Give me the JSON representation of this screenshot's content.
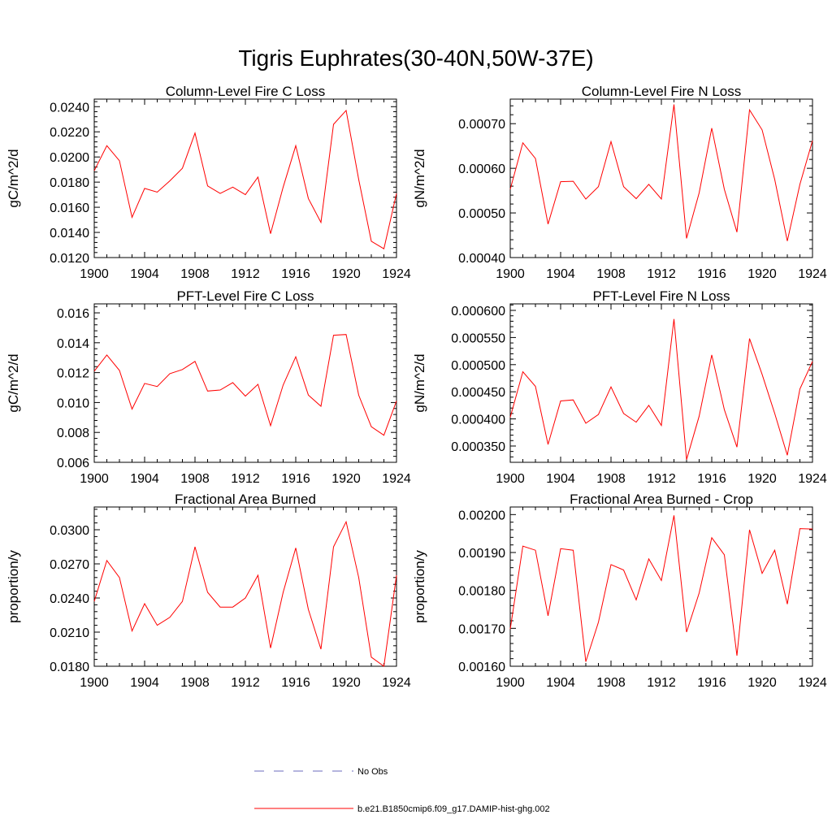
{
  "title": "Tigris Euphrates(30-40N,50W-37E)",
  "legend": {
    "entries": [
      {
        "label": "No Obs",
        "color": "#6b6bbd",
        "style": "dashed"
      },
      {
        "label": "b.e21.B1850cmip6.f09_g17.DAMIP-hist-ghg.002",
        "color": "#ff0000",
        "style": "solid"
      }
    ]
  },
  "chart_data": [
    {
      "type": "line",
      "title": "Column-Level Fire C Loss",
      "ylabel": "gC/m^2/d",
      "xlim": [
        1900,
        1924
      ],
      "ylim": [
        0.012,
        0.0246
      ],
      "x_ticks": [
        1900,
        1904,
        1908,
        1912,
        1916,
        1920,
        1924
      ],
      "x_tick_labels": [
        "1900",
        "1904",
        "1908",
        "1912",
        "1916",
        "1920",
        "1924"
      ],
      "y_ticks": [
        0.012,
        0.014,
        0.016,
        0.018,
        0.02,
        0.022,
        0.024
      ],
      "y_tick_labels": [
        "0.0120",
        "0.0140",
        "0.0160",
        "0.0180",
        "0.0200",
        "0.0220",
        "0.0240"
      ],
      "color": "#ff0000",
      "x": [
        1900,
        1901,
        1902,
        1903,
        1904,
        1905,
        1906,
        1907,
        1908,
        1909,
        1910,
        1911,
        1912,
        1913,
        1914,
        1915,
        1916,
        1917,
        1918,
        1919,
        1920,
        1921,
        1922,
        1923,
        1924
      ],
      "values": [
        0.0189,
        0.0209,
        0.0197,
        0.0152,
        0.0175,
        0.0172,
        0.0181,
        0.0191,
        0.0219,
        0.0177,
        0.0171,
        0.0176,
        0.017,
        0.0184,
        0.0139,
        0.0176,
        0.0209,
        0.0167,
        0.0148,
        0.0226,
        0.0237,
        0.0182,
        0.0133,
        0.0127,
        0.0171
      ]
    },
    {
      "type": "line",
      "title": "Column-Level Fire N Loss",
      "ylabel": "gN/m^2/d",
      "xlim": [
        1900,
        1924
      ],
      "ylim": [
        0.0004,
        0.000755
      ],
      "x_ticks": [
        1900,
        1904,
        1908,
        1912,
        1916,
        1920,
        1924
      ],
      "x_tick_labels": [
        "1900",
        "1904",
        "1908",
        "1912",
        "1916",
        "1920",
        "1924"
      ],
      "y_ticks": [
        0.0004,
        0.0005,
        0.0006,
        0.0007
      ],
      "y_tick_labels": [
        "0.00040",
        "0.00050",
        "0.00060",
        "0.00070"
      ],
      "color": "#ff0000",
      "x": [
        1900,
        1901,
        1902,
        1903,
        1904,
        1905,
        1906,
        1907,
        1908,
        1909,
        1910,
        1911,
        1912,
        1913,
        1914,
        1915,
        1916,
        1917,
        1918,
        1919,
        1920,
        1921,
        1922,
        1923,
        1924
      ],
      "values": [
        0.000553,
        0.000657,
        0.000622,
        0.000475,
        0.00057,
        0.000571,
        0.000531,
        0.000559,
        0.00066,
        0.000559,
        0.000532,
        0.000564,
        0.000531,
        0.000743,
        0.000443,
        0.000545,
        0.00069,
        0.000553,
        0.000457,
        0.000731,
        0.000686,
        0.000575,
        0.000437,
        0.000564,
        0.000662
      ]
    },
    {
      "type": "line",
      "title": "PFT-Level Fire C Loss",
      "ylabel": "gC/m^2/d",
      "xlim": [
        1900,
        1924
      ],
      "ylim": [
        0.006,
        0.0166
      ],
      "x_ticks": [
        1900,
        1904,
        1908,
        1912,
        1916,
        1920,
        1924
      ],
      "x_tick_labels": [
        "1900",
        "1904",
        "1908",
        "1912",
        "1916",
        "1920",
        "1924"
      ],
      "y_ticks": [
        0.006,
        0.008,
        0.01,
        0.012,
        0.014,
        0.016
      ],
      "y_tick_labels": [
        "0.006",
        "0.008",
        "0.010",
        "0.012",
        "0.014",
        "0.016"
      ],
      "color": "#ff0000",
      "x": [
        1900,
        1901,
        1902,
        1903,
        1904,
        1905,
        1906,
        1907,
        1908,
        1909,
        1910,
        1911,
        1912,
        1913,
        1914,
        1915,
        1916,
        1917,
        1918,
        1919,
        1920,
        1921,
        1922,
        1923,
        1924
      ],
      "values": [
        0.0121,
        0.01318,
        0.01215,
        0.00956,
        0.01128,
        0.01107,
        0.01193,
        0.01221,
        0.01275,
        0.01077,
        0.01084,
        0.01133,
        0.01043,
        0.01122,
        0.00845,
        0.01117,
        0.01306,
        0.0105,
        0.00975,
        0.0145,
        0.01455,
        0.01049,
        0.00838,
        0.00781,
        0.01011
      ]
    },
    {
      "type": "line",
      "title": "PFT-Level Fire N Loss",
      "ylabel": "gN/m^2/d",
      "xlim": [
        1900,
        1924
      ],
      "ylim": [
        0.00032,
        0.000612
      ],
      "x_ticks": [
        1900,
        1904,
        1908,
        1912,
        1916,
        1920,
        1924
      ],
      "x_tick_labels": [
        "1900",
        "1904",
        "1908",
        "1912",
        "1916",
        "1920",
        "1924"
      ],
      "y_ticks": [
        0.00035,
        0.0004,
        0.00045,
        0.0005,
        0.00055,
        0.0006
      ],
      "y_tick_labels": [
        "0.000350",
        "0.000400",
        "0.000450",
        "0.000500",
        "0.000550",
        "0.000600"
      ],
      "color": "#ff0000",
      "x": [
        1900,
        1901,
        1902,
        1903,
        1904,
        1905,
        1906,
        1907,
        1908,
        1909,
        1910,
        1911,
        1912,
        1913,
        1914,
        1915,
        1916,
        1917,
        1918,
        1919,
        1920,
        1921,
        1922,
        1923,
        1924
      ],
      "values": [
        0.000403,
        0.000487,
        0.00046,
        0.000353,
        0.000433,
        0.000435,
        0.000392,
        0.000408,
        0.000459,
        0.00041,
        0.000394,
        0.000425,
        0.000388,
        0.000584,
        0.000325,
        0.000405,
        0.000518,
        0.000417,
        0.000348,
        0.000548,
        0.000482,
        0.00041,
        0.000333,
        0.000455,
        0.000506
      ]
    },
    {
      "type": "line",
      "title": "Fractional Area Burned",
      "ylabel": "proportion/y",
      "xlim": [
        1900,
        1924
      ],
      "ylim": [
        0.018,
        0.032
      ],
      "x_ticks": [
        1900,
        1904,
        1908,
        1912,
        1916,
        1920,
        1924
      ],
      "x_tick_labels": [
        "1900",
        "1904",
        "1908",
        "1912",
        "1916",
        "1920",
        "1924"
      ],
      "y_ticks": [
        0.018,
        0.021,
        0.024,
        0.027,
        0.03
      ],
      "y_tick_labels": [
        "0.0180",
        "0.0210",
        "0.0240",
        "0.0270",
        "0.0300"
      ],
      "color": "#ff0000",
      "x": [
        1900,
        1901,
        1902,
        1903,
        1904,
        1905,
        1906,
        1907,
        1908,
        1909,
        1910,
        1911,
        1912,
        1913,
        1914,
        1915,
        1916,
        1917,
        1918,
        1919,
        1920,
        1921,
        1922,
        1923,
        1924
      ],
      "values": [
        0.0237,
        0.0273,
        0.0258,
        0.0211,
        0.0235,
        0.0216,
        0.0223,
        0.0237,
        0.0285,
        0.0245,
        0.0232,
        0.0232,
        0.024,
        0.026,
        0.0196,
        0.0245,
        0.0284,
        0.023,
        0.0195,
        0.0285,
        0.0307,
        0.0258,
        0.0188,
        0.018,
        0.026
      ]
    },
    {
      "type": "line",
      "title": "Fractional Area Burned - Crop",
      "ylabel": "proportion/y",
      "xlim": [
        1900,
        1924
      ],
      "ylim": [
        0.0016,
        0.00202
      ],
      "x_ticks": [
        1900,
        1904,
        1908,
        1912,
        1916,
        1920,
        1924
      ],
      "x_tick_labels": [
        "1900",
        "1904",
        "1908",
        "1912",
        "1916",
        "1920",
        "1924"
      ],
      "y_ticks": [
        0.0016,
        0.0017,
        0.0018,
        0.0019,
        0.002
      ],
      "y_tick_labels": [
        "0.00160",
        "0.00170",
        "0.00180",
        "0.00190",
        "0.00200"
      ],
      "color": "#ff0000",
      "x": [
        1900,
        1901,
        1902,
        1903,
        1904,
        1905,
        1906,
        1907,
        1908,
        1909,
        1910,
        1911,
        1912,
        1913,
        1914,
        1915,
        1916,
        1917,
        1918,
        1919,
        1920,
        1921,
        1922,
        1923,
        1924
      ],
      "values": [
        0.001698,
        0.001917,
        0.001906,
        0.001733,
        0.00191,
        0.001906,
        0.001612,
        0.001716,
        0.001868,
        0.001854,
        0.001775,
        0.001883,
        0.001826,
        0.001998,
        0.00169,
        0.001793,
        0.001939,
        0.001894,
        0.001628,
        0.00196,
        0.001845,
        0.001906,
        0.001764,
        0.001963,
        0.001962
      ]
    }
  ]
}
